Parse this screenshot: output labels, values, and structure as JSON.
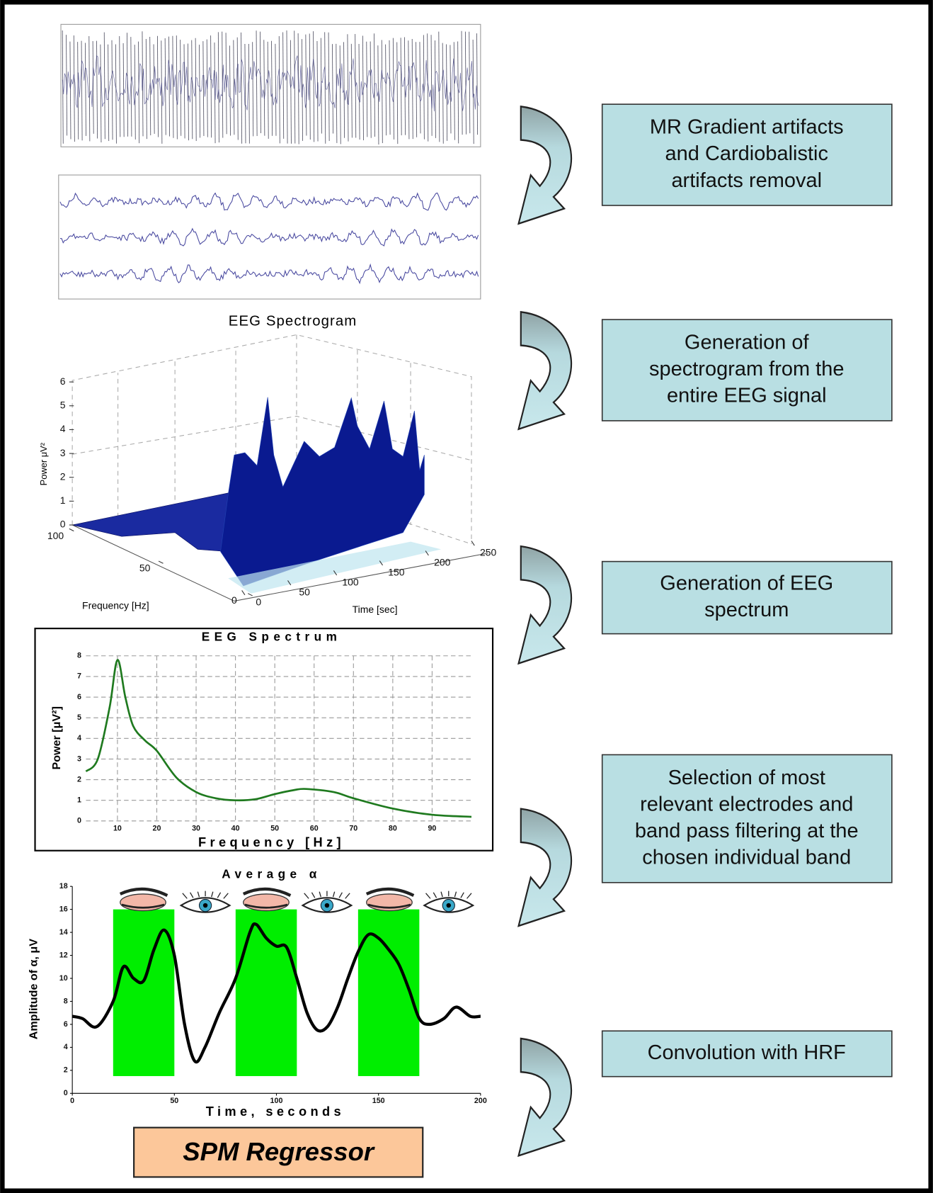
{
  "steps": [
    {
      "lines": [
        "MR Gradient artifacts",
        "and Cardiobalistic",
        "artifacts removal"
      ]
    },
    {
      "lines": [
        "Generation of",
        "spectrogram from the",
        "entire EEG signal"
      ]
    },
    {
      "lines": [
        "Generation of EEG",
        "spectrum"
      ]
    },
    {
      "lines": [
        "Selection of most",
        "relevant electrodes and",
        "band pass filtering at the",
        "chosen individual band"
      ]
    },
    {
      "lines": [
        "Convolution with HRF"
      ]
    }
  ],
  "result": "SPM Regressor",
  "spectrogram": {
    "type": "surface",
    "title": "EEG Spectrogram",
    "zlabel": "Power μV²",
    "xlabel": "Frequency [Hz]",
    "ylabel": "Time [sec]",
    "zlim": [
      0,
      6
    ],
    "zticks": [
      0,
      1,
      2,
      3,
      4,
      5,
      6
    ],
    "xlim": [
      0,
      100
    ],
    "xticks": [
      0,
      50,
      100
    ],
    "ylim": [
      0,
      250
    ],
    "yticks": [
      0,
      50,
      100,
      150,
      200,
      250
    ]
  },
  "spectrum": {
    "type": "line",
    "title": "EEG Spectrum",
    "xlabel": "Frequency [Hz]",
    "ylabel": "Power [μV²]",
    "x": [
      2,
      5,
      8,
      10,
      12,
      14,
      17,
      20,
      25,
      30,
      35,
      40,
      45,
      50,
      55,
      58,
      65,
      70,
      80,
      90,
      100
    ],
    "values": [
      2.4,
      3,
      5.5,
      7.8,
      6,
      4.6,
      3.9,
      3.4,
      2.1,
      1.4,
      1.1,
      1,
      1.05,
      1.3,
      1.5,
      1.55,
      1.4,
      1.1,
      0.6,
      0.3,
      0.2
    ],
    "color": "#1f7a1f",
    "xlim": [
      2,
      100
    ],
    "ylim": [
      0,
      8
    ],
    "xticks": [
      10,
      20,
      30,
      40,
      50,
      60,
      70,
      80,
      90
    ],
    "yticks": [
      0,
      1,
      2,
      3,
      4,
      5,
      6,
      7,
      8
    ],
    "grid": true
  },
  "alpha": {
    "type": "line",
    "title": "Average α",
    "xlabel": "Time, seconds",
    "ylabel": "Amplitude of α, μV",
    "x": [
      0,
      5,
      12,
      20,
      25,
      30,
      35,
      40,
      45,
      50,
      55,
      60,
      65,
      72,
      80,
      87,
      90,
      95,
      100,
      105,
      110,
      115,
      120,
      125,
      130,
      135,
      140,
      145,
      150,
      155,
      160,
      165,
      170,
      175,
      182,
      188,
      195,
      200
    ],
    "values": [
      6.7,
      6.5,
      5.8,
      8,
      11,
      10,
      9.8,
      12.5,
      14.2,
      12,
      6,
      2.8,
      4,
      7,
      10,
      14,
      14.7,
      13.5,
      12.8,
      12.7,
      10,
      7,
      5.5,
      5.8,
      7.5,
      10,
      12.3,
      13.8,
      13.5,
      12.5,
      11.2,
      9,
      6.5,
      6,
      6.5,
      7.5,
      6.7,
      6.7
    ],
    "color": "#000000",
    "xlim": [
      0,
      200
    ],
    "ylim": [
      0,
      18
    ],
    "xticks": [
      0,
      50,
      100,
      150,
      200
    ],
    "yticks": [
      0,
      2,
      4,
      6,
      8,
      10,
      12,
      14,
      16,
      18
    ],
    "blocks": [
      {
        "start": 20,
        "end": 50
      },
      {
        "start": 80,
        "end": 110
      },
      {
        "start": 140,
        "end": 170
      }
    ],
    "block_range": [
      1.5,
      16
    ],
    "block_color": "#00ee00"
  }
}
